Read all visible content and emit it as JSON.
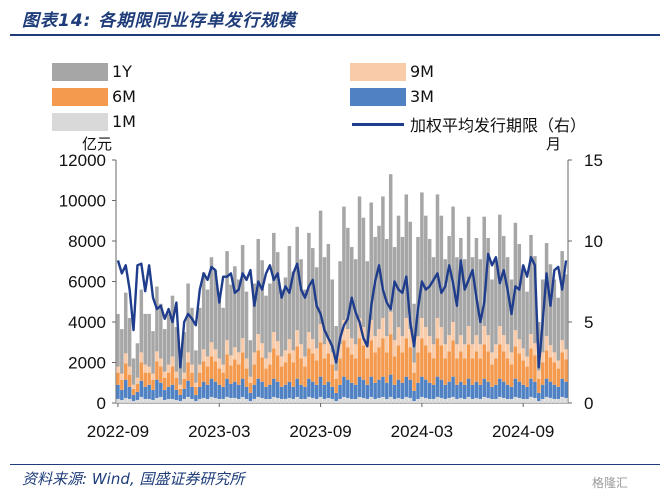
{
  "header": {
    "title": "图表14: 各期限同业存单发行规模"
  },
  "footer": {
    "source": "资料来源: Wind, 国盛证券研究所",
    "watermark": "格隆汇"
  },
  "chart_data": {
    "type": "bar",
    "stacked": true,
    "title": "图表14: 各期限同业存单发行规模",
    "ylabel": "亿元",
    "y2label": "月",
    "ylim": [
      0,
      12000
    ],
    "y2lim": [
      0,
      15
    ],
    "yticks": [
      0,
      2000,
      4000,
      6000,
      8000,
      10000,
      12000
    ],
    "y2ticks": [
      0,
      5,
      10,
      15
    ],
    "xtick_labels": [
      "2022-09",
      "2023-03",
      "2023-09",
      "2024-03",
      "2024-09"
    ],
    "colors": {
      "1M": "#d9d9d9",
      "3M": "#4f81c3",
      "6M": "#f39a4f",
      "9M": "#f9cba8",
      "1Y": "#a6a6a6",
      "avg": "#1f3d8c"
    },
    "categories": [
      "2022-09-05",
      "2022-09-12",
      "2022-09-19",
      "2022-09-26",
      "2022-10-03",
      "2022-10-10",
      "2022-10-17",
      "2022-10-24",
      "2022-10-31",
      "2022-11-07",
      "2022-11-14",
      "2022-11-21",
      "2022-11-28",
      "2022-12-05",
      "2022-12-12",
      "2022-12-19",
      "2022-12-26",
      "2023-01-02",
      "2023-01-09",
      "2023-01-16",
      "2023-01-23",
      "2023-01-30",
      "2023-02-06",
      "2023-02-13",
      "2023-02-20",
      "2023-02-27",
      "2023-03-06",
      "2023-03-13",
      "2023-03-20",
      "2023-03-27",
      "2023-04-03",
      "2023-04-10",
      "2023-04-17",
      "2023-04-24",
      "2023-05-01",
      "2023-05-08",
      "2023-05-15",
      "2023-05-22",
      "2023-05-29",
      "2023-06-05",
      "2023-06-12",
      "2023-06-19",
      "2023-06-26",
      "2023-07-03",
      "2023-07-10",
      "2023-07-17",
      "2023-07-24",
      "2023-07-31",
      "2023-08-07",
      "2023-08-14",
      "2023-08-21",
      "2023-08-28",
      "2023-09-04",
      "2023-09-11",
      "2023-09-18",
      "2023-09-25",
      "2023-10-02",
      "2023-10-09",
      "2023-10-16",
      "2023-10-23",
      "2023-10-30",
      "2023-11-06",
      "2023-11-13",
      "2023-11-20",
      "2023-11-27",
      "2023-12-04",
      "2023-12-11",
      "2023-12-18",
      "2023-12-25",
      "2024-01-01",
      "2024-01-08",
      "2024-01-15",
      "2024-01-22",
      "2024-01-29",
      "2024-02-05",
      "2024-02-12",
      "2024-02-19",
      "2024-02-26",
      "2024-03-04",
      "2024-03-11",
      "2024-03-18",
      "2024-03-25",
      "2024-04-01",
      "2024-04-08",
      "2024-04-15",
      "2024-04-22",
      "2024-04-29",
      "2024-05-06",
      "2024-05-13",
      "2024-05-20",
      "2024-05-27",
      "2024-06-03",
      "2024-06-10",
      "2024-06-17",
      "2024-06-24",
      "2024-07-01",
      "2024-07-08",
      "2024-07-15",
      "2024-07-22",
      "2024-07-29",
      "2024-08-05",
      "2024-08-12",
      "2024-08-19",
      "2024-08-26",
      "2024-09-02",
      "2024-09-09",
      "2024-09-16",
      "2024-09-23",
      "2024-09-30",
      "2024-10-07",
      "2024-10-14",
      "2024-10-21",
      "2024-10-28",
      "2024-11-04",
      "2024-11-11",
      "2024-11-18"
    ],
    "series": [
      {
        "name": "1M",
        "values": [
          200,
          150,
          250,
          200,
          100,
          150,
          300,
          200,
          200,
          150,
          250,
          300,
          150,
          200,
          200,
          150,
          100,
          200,
          300,
          200,
          100,
          200,
          250,
          200,
          300,
          250,
          200,
          200,
          300,
          250,
          250,
          200,
          300,
          200,
          100,
          200,
          300,
          250,
          200,
          200,
          300,
          250,
          200,
          200,
          250,
          200,
          300,
          200,
          200,
          300,
          250,
          200,
          300,
          200,
          250,
          200,
          100,
          200,
          300,
          250,
          200,
          200,
          300,
          250,
          200,
          300,
          200,
          250,
          300,
          200,
          300,
          200,
          250,
          200,
          300,
          250,
          100,
          200,
          300,
          250,
          200,
          200,
          300,
          250,
          200,
          250,
          300,
          200,
          250,
          200,
          300,
          200,
          250,
          200,
          300,
          250,
          200,
          200,
          300,
          250,
          200,
          200,
          300,
          250,
          200,
          200,
          300,
          250,
          100,
          200,
          300,
          250,
          200,
          200,
          300,
          250
        ]
      },
      {
        "name": "3M",
        "values": [
          700,
          500,
          900,
          600,
          300,
          400,
          800,
          600,
          700,
          500,
          900,
          700,
          500,
          600,
          700,
          500,
          300,
          500,
          800,
          600,
          300,
          600,
          800,
          700,
          900,
          800,
          700,
          600,
          900,
          700,
          800,
          700,
          900,
          600,
          400,
          700,
          900,
          800,
          600,
          700,
          900,
          800,
          600,
          700,
          800,
          600,
          900,
          700,
          600,
          900,
          800,
          700,
          1000,
          700,
          800,
          600,
          400,
          700,
          1000,
          900,
          800,
          700,
          1000,
          900,
          700,
          1000,
          800,
          900,
          1000,
          800,
          1100,
          700,
          900,
          800,
          1000,
          900,
          500,
          800,
          1000,
          900,
          800,
          700,
          1000,
          900,
          700,
          800,
          1000,
          700,
          800,
          700,
          900,
          700,
          800,
          700,
          900,
          800,
          600,
          700,
          900,
          800,
          700,
          600,
          900,
          800,
          700,
          600,
          900,
          800,
          400,
          700,
          900,
          800,
          700,
          600,
          900,
          800
        ]
      },
      {
        "name": "6M",
        "values": [
          600,
          500,
          800,
          600,
          300,
          400,
          900,
          700,
          600,
          500,
          900,
          800,
          600,
          700,
          900,
          600,
          300,
          500,
          900,
          700,
          400,
          700,
          1000,
          900,
          1100,
          1000,
          800,
          700,
          1200,
          900,
          1100,
          1000,
          1300,
          900,
          500,
          1000,
          1400,
          1200,
          900,
          1000,
          1500,
          1300,
          1000,
          1100,
          1400,
          1200,
          1600,
          1300,
          1000,
          1500,
          1400,
          1200,
          1700,
          1300,
          1400,
          1100,
          700,
          1300,
          1800,
          1600,
          1400,
          1300,
          1900,
          1700,
          1300,
          1800,
          1500,
          1600,
          1900,
          1500,
          2000,
          1400,
          1700,
          1500,
          1900,
          1600,
          900,
          1500,
          1900,
          1700,
          1500,
          1300,
          1900,
          1700,
          1300,
          1500,
          1800,
          1300,
          1500,
          1300,
          1700,
          1300,
          1500,
          1300,
          1700,
          1500,
          1100,
          1300,
          1700,
          1500,
          1300,
          1100,
          1600,
          1400,
          1200,
          1000,
          1500,
          1300,
          700,
          1100,
          1400,
          1200,
          1100,
          900,
          1300,
          1100
        ]
      },
      {
        "name": "9M",
        "values": [
          300,
          300,
          500,
          400,
          200,
          300,
          500,
          400,
          300,
          300,
          500,
          400,
          300,
          400,
          500,
          300,
          200,
          300,
          500,
          400,
          200,
          400,
          600,
          500,
          700,
          600,
          500,
          400,
          700,
          500,
          600,
          600,
          700,
          500,
          300,
          600,
          800,
          700,
          500,
          600,
          800,
          700,
          500,
          600,
          700,
          600,
          800,
          700,
          500,
          800,
          700,
          600,
          900,
          700,
          800,
          600,
          400,
          700,
          1000,
          900,
          800,
          700,
          1000,
          900,
          700,
          1000,
          800,
          900,
          1000,
          800,
          1100,
          800,
          900,
          800,
          1000,
          900,
          500,
          800,
          1000,
          900,
          800,
          700,
          1000,
          900,
          700,
          800,
          900,
          700,
          800,
          700,
          900,
          700,
          800,
          700,
          900,
          800,
          600,
          700,
          900,
          800,
          700,
          600,
          800,
          700,
          600,
          500,
          700,
          600,
          400,
          500,
          700,
          600,
          500,
          400,
          600,
          500
        ]
      },
      {
        "name": "1Y",
        "values": [
          2600,
          2200,
          3000,
          2400,
          1300,
          1700,
          3100,
          2500,
          2600,
          2100,
          3200,
          2700,
          2100,
          2500,
          3000,
          2200,
          1200,
          2000,
          3400,
          2800,
          1600,
          2800,
          3800,
          3300,
          4200,
          3900,
          3200,
          2800,
          4400,
          3500,
          4000,
          3600,
          4600,
          3300,
          1800,
          3400,
          4700,
          4100,
          3100,
          3400,
          4900,
          4400,
          3300,
          3600,
          4600,
          3900,
          5100,
          4200,
          3300,
          4900,
          4500,
          4000,
          5600,
          4300,
          4600,
          3600,
          2200,
          4100,
          5600,
          5000,
          4500,
          4200,
          6000,
          5400,
          4100,
          5800,
          4900,
          5100,
          6000,
          4800,
          6800,
          4600,
          5500,
          4900,
          6100,
          5300,
          2900,
          4900,
          6200,
          5500,
          4800,
          4300,
          6100,
          5500,
          4200,
          4900,
          5700,
          4300,
          4800,
          4200,
          5400,
          4300,
          4800,
          4200,
          5400,
          4800,
          3600,
          4200,
          5500,
          4900,
          4300,
          3600,
          5300,
          4700,
          3900,
          3200,
          4900,
          4300,
          2400,
          3600,
          4600,
          4000,
          3600,
          3100,
          4400,
          3700
        ]
      }
    ],
    "line_series": {
      "name": "加权平均发行期限 (右)",
      "axis": "right",
      "values": [
        8.8,
        8.0,
        8.5,
        7.0,
        4.5,
        8.5,
        8.6,
        6.9,
        8.5,
        6.5,
        5.8,
        6.0,
        5.2,
        5.8,
        5.0,
        6.2,
        2.2,
        5.0,
        5.5,
        5.2,
        4.8,
        7.0,
        8.0,
        7.6,
        8.4,
        8.2,
        6.2,
        7.8,
        7.8,
        8.0,
        6.8,
        7.0,
        8.0,
        7.6,
        8.2,
        6.0,
        7.5,
        7.0,
        8.0,
        8.5,
        7.6,
        8.0,
        6.5,
        7.2,
        6.8,
        8.0,
        8.6,
        7.0,
        6.5,
        7.2,
        7.6,
        6.0,
        5.5,
        4.5,
        4.0,
        3.5,
        2.5,
        4.0,
        4.8,
        5.2,
        6.5,
        5.6,
        5.0,
        4.0,
        3.5,
        6.0,
        7.5,
        8.5,
        7.0,
        6.2,
        5.8,
        7.5,
        7.0,
        6.8,
        7.8,
        5.0,
        3.5,
        5.8,
        7.5,
        7.0,
        7.2,
        7.6,
        8.0,
        6.8,
        7.2,
        8.5,
        7.4,
        6.0,
        8.8,
        7.0,
        7.6,
        8.2,
        6.5,
        5.0,
        6.2,
        9.2,
        8.5,
        9.0,
        7.4,
        8.2,
        7.0,
        5.5,
        7.2,
        7.0,
        8.5,
        7.8,
        9.0,
        8.5,
        2.2,
        5.0,
        8.0,
        6.0,
        8.2,
        8.4,
        7.0,
        8.8
      ]
    }
  },
  "legend": {
    "items": [
      {
        "label": "1Y"
      },
      {
        "label": "9M"
      },
      {
        "label": "6M"
      },
      {
        "label": "3M"
      },
      {
        "label": "1M"
      },
      {
        "label": "加权平均发行期限（右）"
      }
    ]
  },
  "axis": {
    "left_unit": "亿元",
    "right_unit": "月"
  }
}
